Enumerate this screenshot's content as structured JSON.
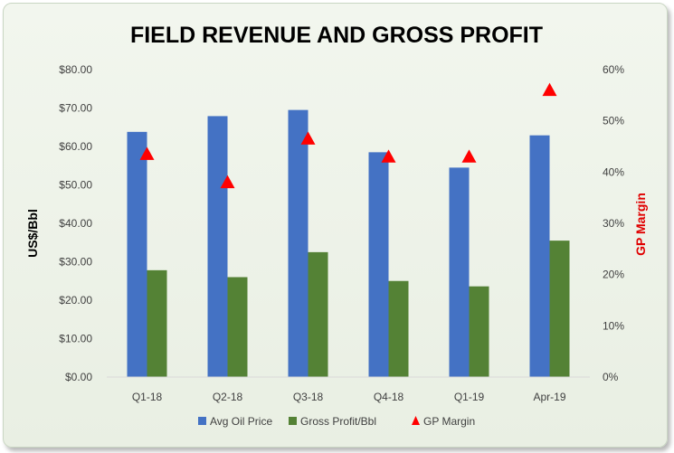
{
  "chart_data": {
    "type": "bar",
    "title": "FIELD REVENUE AND GROSS PROFIT",
    "categories": [
      "Q1-18",
      "Q2-18",
      "Q3-18",
      "Q4-18",
      "Q1-19",
      "Apr-19"
    ],
    "ylabel": "US$/Bbl",
    "y2label": "GP Margin",
    "ylim": [
      0,
      80
    ],
    "y2lim": [
      0,
      0.6
    ],
    "y_ticks": [
      "$0.00",
      "$10.00",
      "$20.00",
      "$30.00",
      "$40.00",
      "$50.00",
      "$60.00",
      "$70.00",
      "$80.00"
    ],
    "y2_ticks": [
      "0%",
      "10%",
      "20%",
      "30%",
      "40%",
      "50%",
      "60%"
    ],
    "series": [
      {
        "name": "Avg Oil Price",
        "type": "bar",
        "axis": "left",
        "color": "#4472c4",
        "values": [
          63.8,
          67.9,
          69.5,
          58.5,
          54.5,
          62.9
        ]
      },
      {
        "name": "Gross Profit/Bbl",
        "type": "bar",
        "axis": "left",
        "color": "#548235",
        "values": [
          27.8,
          26.0,
          32.5,
          25.0,
          23.6,
          35.5
        ]
      },
      {
        "name": "GP Margin",
        "type": "scatter",
        "marker": "triangle",
        "axis": "right",
        "color": "#ff0000",
        "values": [
          0.435,
          0.38,
          0.465,
          0.43,
          0.43,
          0.56
        ]
      }
    ],
    "grid": false,
    "legend": "bottom"
  }
}
